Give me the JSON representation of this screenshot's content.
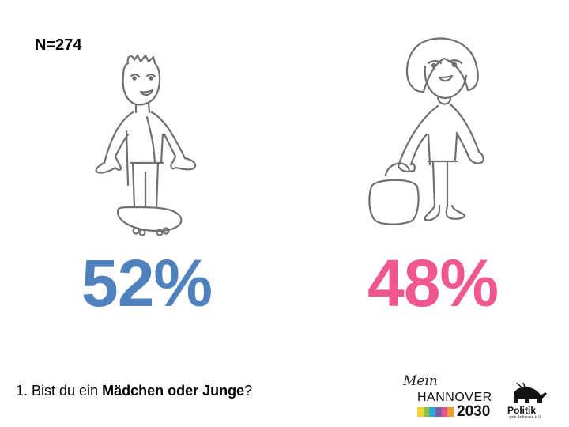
{
  "sample_size_label": "N=274",
  "question": {
    "prefix": "1. Bist du ein ",
    "bold": "Mädchen oder Junge",
    "suffix": "?"
  },
  "chart_data": {
    "type": "pictogram",
    "categories": [
      "Junge",
      "Mädchen"
    ],
    "values": [
      52,
      48
    ],
    "value_labels": [
      "52%",
      "48%"
    ],
    "colors": [
      "#4f81bd",
      "#f0568f"
    ],
    "title": "",
    "xlabel": "",
    "ylabel": ""
  },
  "logos": {
    "mein": "Mein",
    "hannover": "HANNOVER",
    "year": "2030",
    "stripe_colors": [
      "#f2d338",
      "#8cc63f",
      "#2aa6d9",
      "#7b5ea8",
      "#e8548c",
      "#f39a2e"
    ],
    "politik": "Politik",
    "politik_sub": "zum Anfassen e.V."
  }
}
